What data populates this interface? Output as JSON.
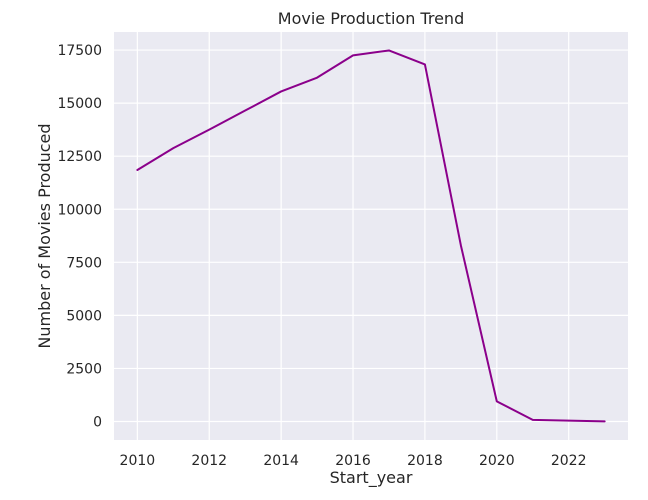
{
  "chart_data": {
    "type": "line",
    "title": "Movie Production Trend",
    "xlabel": "Start_year",
    "ylabel": "Number of Movies Produced",
    "x": [
      2010,
      2011,
      2012,
      2013,
      2014,
      2015,
      2016,
      2017,
      2018,
      2019,
      2020,
      2021,
      2022,
      2023
    ],
    "series": [
      {
        "values": [
          11850,
          12880,
          13750,
          14650,
          15550,
          16200,
          17250,
          17480,
          16820,
          8300,
          950,
          80,
          40,
          10
        ]
      }
    ],
    "xlim": [
      2009.35,
      2023.65
    ],
    "ylim": [
      -870,
      18350
    ],
    "xticks": [
      2010,
      2012,
      2014,
      2016,
      2018,
      2020,
      2022
    ],
    "yticks": [
      0,
      2500,
      5000,
      7500,
      10000,
      12500,
      15000,
      17500
    ],
    "grid": true,
    "colors": {
      "line": "#8b008b",
      "plot_background": "#eaeaf2",
      "grid": "#ffffff",
      "text": "#262626"
    }
  }
}
